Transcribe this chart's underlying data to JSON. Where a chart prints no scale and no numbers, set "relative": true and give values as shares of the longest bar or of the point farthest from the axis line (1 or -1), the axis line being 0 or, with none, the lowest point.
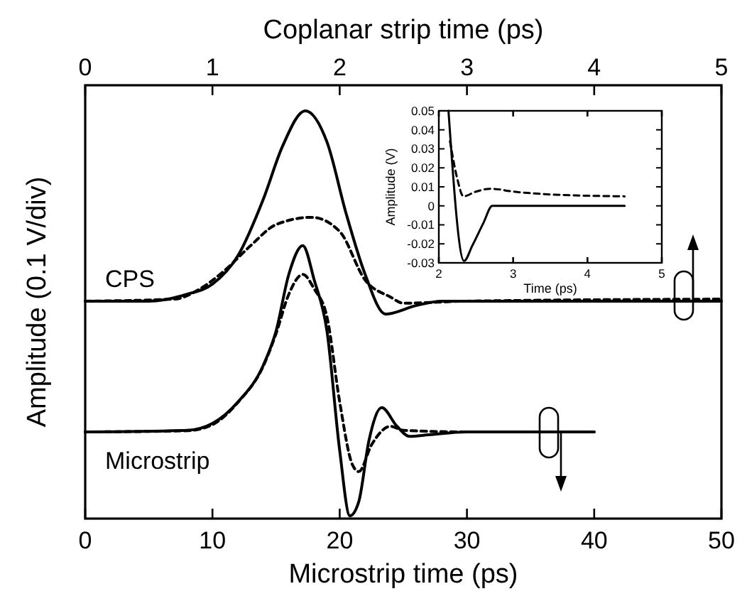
{
  "chart_data": [
    {
      "type": "line",
      "xlabel": "Microstrip time (ps)",
      "x2label": "Coplanar strip time (ps)",
      "ylabel": "Amplitude (0.1 V/div)",
      "relative": true,
      "xlim": [
        0,
        50
      ],
      "xticks": [
        0,
        10,
        20,
        30,
        40,
        50
      ],
      "x2lim": [
        0,
        5
      ],
      "x2ticks": [
        0,
        1,
        2,
        3,
        4,
        5
      ],
      "grid": false,
      "series": [
        {
          "name": "CPS",
          "axis": "x2",
          "color": "#000000",
          "line_style": "solid",
          "x": [
            0,
            0.5,
            0.8,
            1.0,
            1.2,
            1.4,
            1.55,
            1.73,
            1.9,
            2.05,
            2.2,
            2.36,
            2.6,
            2.8,
            5
          ],
          "values": [
            0.53,
            0.53,
            0.547,
            0.572,
            0.642,
            0.782,
            0.912,
            1.0,
            0.923,
            0.747,
            0.596,
            0.498,
            0.519,
            0.53,
            0.53
          ]
        },
        {
          "axis": "x2",
          "color": "#000000",
          "line_style": "dashed",
          "x": [
            0,
            0.7,
            0.9,
            1.1,
            1.3,
            1.5,
            1.78,
            2.0,
            2.2,
            2.4,
            2.5,
            3.0,
            5
          ],
          "values": [
            0.53,
            0.535,
            0.56,
            0.607,
            0.667,
            0.719,
            0.737,
            0.702,
            0.582,
            0.54,
            0.525,
            0.53,
            0.535
          ]
        },
        {
          "name": "Microstrip",
          "color": "#000000",
          "line_style": "solid",
          "x": [
            0,
            8,
            10,
            12,
            14,
            15,
            16,
            17.1,
            18,
            19,
            20,
            20.8,
            21.5,
            22.3,
            23.3,
            24.5,
            25.5,
            27,
            30,
            40
          ],
          "values": [
            0.207,
            0.211,
            0.228,
            0.281,
            0.372,
            0.456,
            0.596,
            0.667,
            0.582,
            0.456,
            0.161,
            0,
            0.035,
            0.186,
            0.267,
            0.221,
            0.196,
            0.2,
            0.207,
            0.207
          ]
        },
        {
          "color": "#000000",
          "line_style": "dashed",
          "x": [
            0,
            8,
            10,
            12,
            14,
            15,
            16,
            17.1,
            18,
            19,
            20,
            21,
            21.5,
            22.5,
            24,
            25,
            30,
            40
          ],
          "values": [
            0.207,
            0.21,
            0.225,
            0.28,
            0.37,
            0.45,
            0.547,
            0.596,
            0.56,
            0.491,
            0.281,
            0.126,
            0.109,
            0.175,
            0.221,
            0.211,
            0.207,
            0.207
          ]
        }
      ]
    },
    {
      "type": "line",
      "xlabel": "Time (ps)",
      "ylabel": "Amplitude (V)",
      "xlim": [
        2,
        5
      ],
      "xticks": [
        2,
        3,
        4,
        5
      ],
      "ylim": [
        -0.03,
        0.05
      ],
      "yticks": [
        -0.03,
        -0.02,
        -0.01,
        0,
        0.01,
        0.02,
        0.03,
        0.04,
        0.05
      ],
      "grid": false,
      "series": [
        {
          "color": "#000000",
          "line_style": "solid",
          "x": [
            2.13,
            2.34,
            2.45,
            2.6,
            2.72,
            4.5
          ],
          "values": [
            0.05,
            -0.029,
            -0.021,
            -0.009,
            0,
            0
          ]
        },
        {
          "color": "#000000",
          "line_style": "dashed",
          "x": [
            2.15,
            2.25,
            2.33,
            2.5,
            2.7,
            3.0,
            3.5,
            4.5
          ],
          "values": [
            0.034,
            0.014,
            0.005,
            0.0075,
            0.009,
            0.0075,
            0.006,
            0.005
          ]
        }
      ]
    }
  ]
}
